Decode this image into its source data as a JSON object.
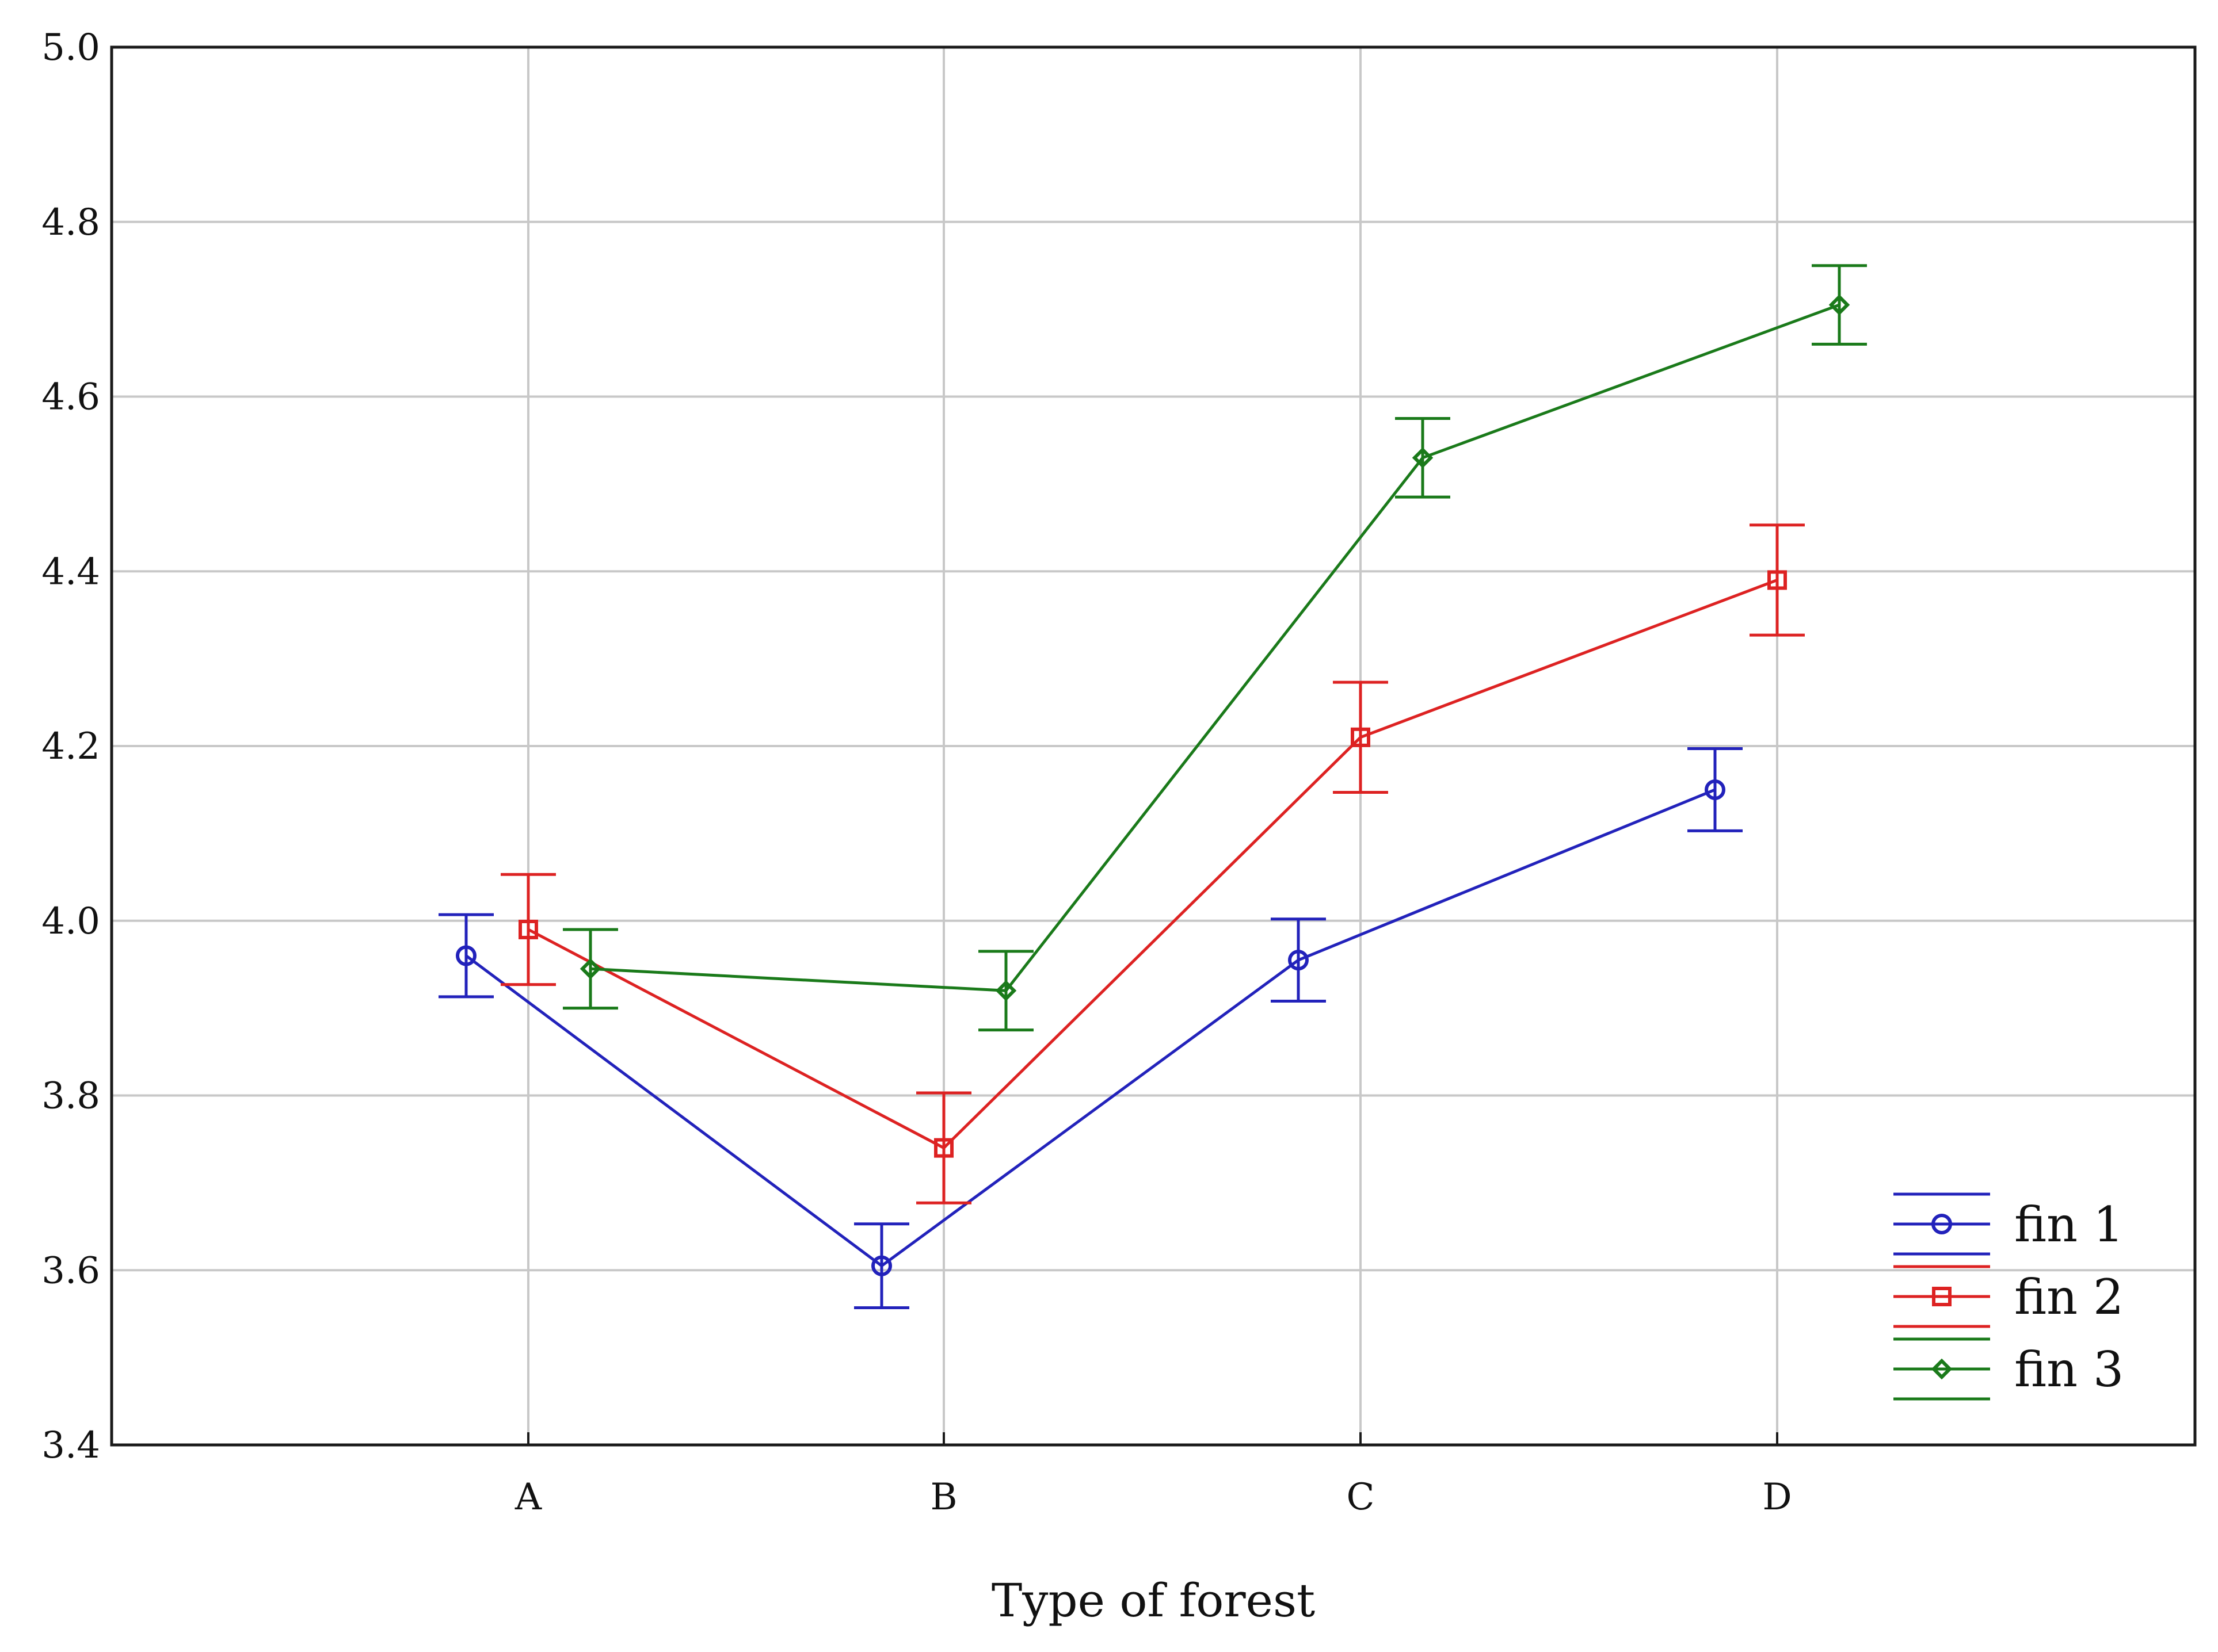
{
  "chart_data": {
    "type": "line",
    "title": "",
    "xlabel": "Type of forest",
    "ylabel": "",
    "categories": [
      "A",
      "B",
      "C",
      "D"
    ],
    "ylim": [
      3.4,
      5.0
    ],
    "yticks": [
      "3.4",
      "3.6",
      "3.8",
      "4.0",
      "4.2",
      "4.4",
      "4.6",
      "4.8",
      "5.0"
    ],
    "grid": true,
    "legend_position": "bottom-right",
    "error_bars": true,
    "series": [
      {
        "name": "fin 1",
        "color": "#2222bb",
        "marker": "circle",
        "values": [
          3.96,
          3.605,
          3.955,
          4.15
        ],
        "errors": [
          0.047,
          0.048,
          0.047,
          0.047
        ]
      },
      {
        "name": "fin 2",
        "color": "#dd2222",
        "marker": "square",
        "values": [
          3.99,
          3.74,
          4.21,
          4.39
        ],
        "errors": [
          0.063,
          0.063,
          0.063,
          0.063
        ]
      },
      {
        "name": "fin 3",
        "color": "#1a7a1a",
        "marker": "diamond",
        "values": [
          3.945,
          3.92,
          4.53,
          4.705
        ],
        "errors": [
          0.045,
          0.045,
          0.045,
          0.045
        ]
      }
    ]
  }
}
